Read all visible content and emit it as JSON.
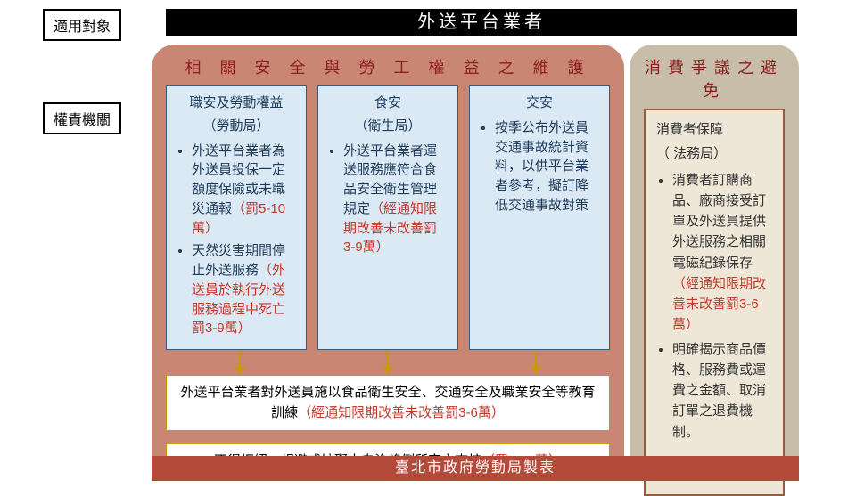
{
  "title": "外送平台業者",
  "tags": {
    "scope": "適用對象",
    "authority": "權責機關"
  },
  "left": {
    "title": "相 關 安 全 與 勞 工 權 益 之 維 護",
    "cards": [
      {
        "title": "職安及勞動權益",
        "sub": "（勞動局）",
        "b1_pre": "外送平台業者為外送員投保一定額度保險或未職災通報",
        "b1_pen": "（罰5-10萬）",
        "b2_pre": "天然災害期間停止外送服務",
        "b2_pen": "（外送員於執行外送服務過程中死亡罰3-9萬）"
      },
      {
        "title": "食安",
        "sub": "（衛生局）",
        "b1_pre": "外送平台業者運送服務應符合食品安全衛生管理規定",
        "b1_pen": "（經通知限期改善未改善罰3-9萬）"
      },
      {
        "title": "交安",
        "sub": "",
        "b1_pre": "按季公布外送員交通事故統計資料，以供平台業者參考，擬訂降低交通事故對策",
        "b1_pen": ""
      }
    ],
    "box1_pre": "外送平台業者對外送員施以食品衛生安全、交通安全及職業安全等教育訓練",
    "box1_pen": "（經通知限期改善未改善罰3-6萬）",
    "box2_pre": "不得拒絕、規避或妨礙本自治條例所定之查核",
    "box2_pen": "（罰5-10萬）"
  },
  "right": {
    "title": "消費爭議之避免",
    "card": {
      "title": "消費者保障",
      "sub": "（ 法務局）",
      "b1_pre": "消費者訂購商品、廠商接受訂單及外送員提供外送服務之相關電磁紀錄保存",
      "b1_pen": "（經通知限期改善未改善罰3-6萬）",
      "b2_pre": "明確揭示商品價格、服務費或運費之金額、取消訂單之退費機制。"
    }
  },
  "footer": "臺北市政府勞動局製表",
  "colors": {
    "left_panel": "#c98673",
    "right_panel": "#c7bda8",
    "card_bg": "#dbe9f4",
    "card_border": "#3a5a7a",
    "right_card_bg": "#eee7d8",
    "right_card_border": "#9a5a3c",
    "penalty": "#c0392b",
    "arrow": "#c49a00",
    "footer": "#b44a3a"
  }
}
